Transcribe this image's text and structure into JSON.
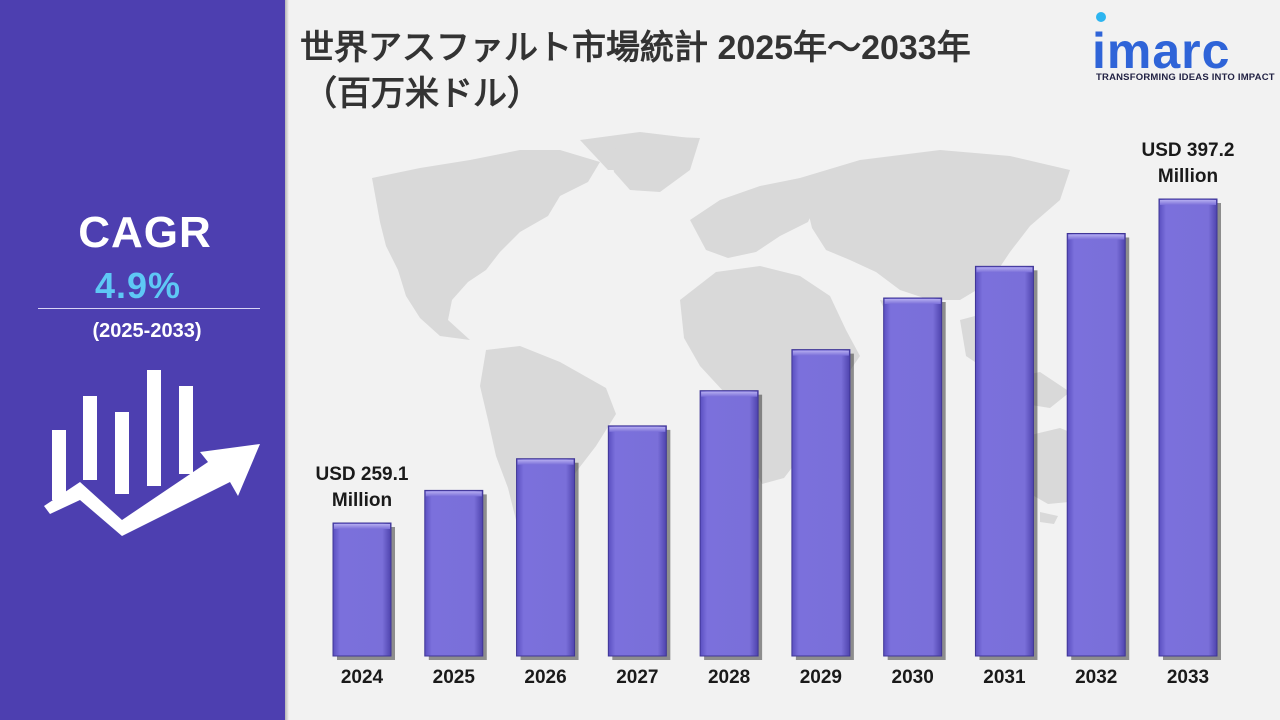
{
  "title_line1": "世界アスファルト市場統計 2025年～2033年",
  "title_line2": "（百万米ドル）",
  "logo": {
    "word": "imarc",
    "tagline": "TRANSFORMING IDEAS INTO IMPACT"
  },
  "cagr": {
    "label": "CAGR",
    "value": "4.9%",
    "period": "(2025-2033)"
  },
  "colors": {
    "panel": "#4d3fb0",
    "bar": "#7a6fd9",
    "cagr_value": "#5ec8f5",
    "logo": "#2f64d8"
  },
  "chart_data": {
    "type": "bar",
    "categories": [
      "2024",
      "2025",
      "2026",
      "2027",
      "2028",
      "2029",
      "2030",
      "2031",
      "2032",
      "2033"
    ],
    "values": [
      259.1,
      273.0,
      286.5,
      300.5,
      315.5,
      333.0,
      355.0,
      368.5,
      382.5,
      397.2
    ],
    "annotations": [
      {
        "category": "2024",
        "line1": "USD 259.1",
        "line2": "Million"
      },
      {
        "category": "2033",
        "line1": "USD 397.2",
        "line2": "Million"
      }
    ],
    "xlabel": "",
    "ylabel": "",
    "grid": false,
    "legend": "none"
  }
}
